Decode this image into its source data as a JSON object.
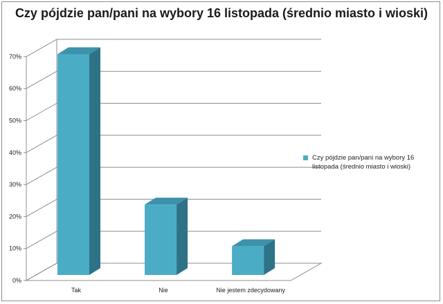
{
  "chart_data": {
    "type": "bar",
    "title": "Czy pójdzie pan/pani na wybory 16 listopada (średnio miasto i wioski)",
    "categories": [
      "Tak",
      "Nie",
      "Nie jestem zdecydowany"
    ],
    "series": [
      {
        "name": "Czy pójdzie pan/pani na wybory 16 listopada (średnio miasto i wioski)",
        "values": [
          69,
          22,
          9
        ]
      }
    ],
    "yticks": [
      "0%",
      "10%",
      "20%",
      "30%",
      "40%",
      "50%",
      "60%",
      "70%"
    ],
    "ylim": [
      0,
      70
    ],
    "ylabel": "",
    "xlabel": "",
    "grid": true,
    "legend_position": "right",
    "colors": {
      "bar_front": "#4bacc6",
      "bar_side": "#2e7287",
      "bar_top": "#3c92aa",
      "grid": "#8c8c8c"
    }
  }
}
